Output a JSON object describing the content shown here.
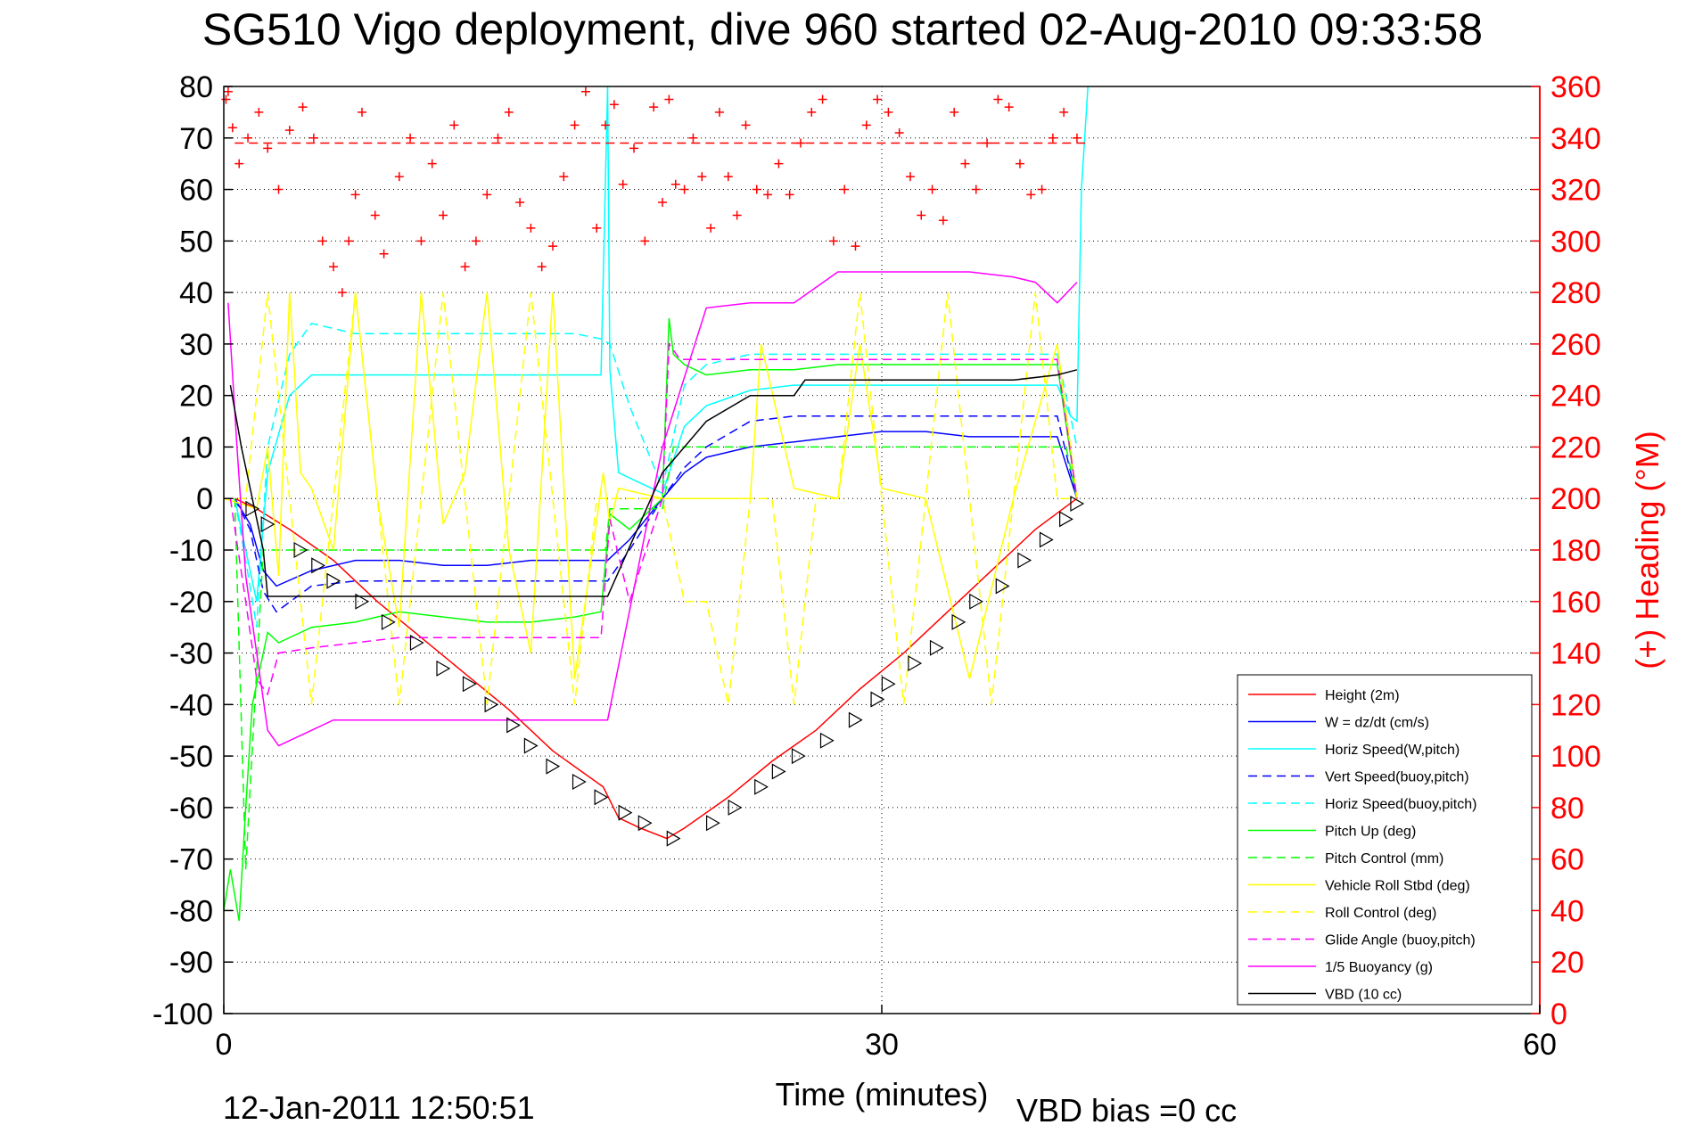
{
  "title": "SG510 Vigo deployment, dive 960 started 02-Aug-2010 09:33:58",
  "footer": {
    "date_stamp": "12-Jan-2011 12:50:51",
    "vbd_bias": "VBD bias =0 cc"
  },
  "chart_data": {
    "type": "line",
    "title": "SG510 Vigo deployment, dive 960 started 02-Aug-2010 09:33:58",
    "xlabel": "Time (minutes)",
    "ylabel": "",
    "y2label": "(+) Heading (°M)",
    "xlim": [
      0,
      60
    ],
    "ylim": [
      -100,
      80
    ],
    "y2lim": [
      0,
      360
    ],
    "xticks": [
      "0",
      "30",
      "60"
    ],
    "yticks": [
      "80",
      "70",
      "60",
      "50",
      "40",
      "30",
      "20",
      "10",
      "0",
      "-10",
      "-20",
      "-30",
      "-40",
      "-50",
      "-60",
      "-70",
      "-80",
      "-90",
      "-100"
    ],
    "y2ticks": [
      "360",
      "340",
      "320",
      "300",
      "280",
      "260",
      "240",
      "220",
      "200",
      "180",
      "160",
      "140",
      "120",
      "100",
      "80",
      "60",
      "40",
      "20",
      "0"
    ],
    "grid": "dotted",
    "legend_position": "bottom-right",
    "colors": {
      "red": "#ff0000",
      "blue": "#0000ff",
      "cyan": "#00ffff",
      "green": "#00ff00",
      "yellow": "#ffff00",
      "magenta": "#ff00ff",
      "black": "#000000"
    },
    "series": [
      {
        "name": "Height (2m)",
        "color": "#ff0000",
        "dash": "solid",
        "x": [
          0.5,
          1.5,
          3,
          5,
          7,
          9,
          11,
          13,
          15,
          17.3,
          18,
          19,
          20.2,
          21,
          23,
          25,
          27,
          29,
          31,
          33,
          35,
          37,
          38.9
        ],
        "y": [
          0,
          -2,
          -6,
          -12,
          -20,
          -27,
          -34,
          -41,
          -49,
          -56,
          -62,
          -64,
          -66,
          -64,
          -58,
          -51,
          -45,
          -37,
          -30,
          -22,
          -14,
          -6,
          0
        ]
      },
      {
        "name": "W = dz/dt (cm/s)",
        "color": "#0000ff",
        "dash": "solid",
        "x": [
          0.5,
          1.2,
          1.8,
          2.4,
          4,
          6,
          8,
          10,
          12,
          14,
          16,
          17.5,
          18.5,
          20,
          21,
          22,
          24,
          26,
          28,
          30,
          32,
          34,
          36,
          38,
          38.9
        ],
        "y": [
          0,
          -5,
          -14,
          -17,
          -14,
          -12,
          -12,
          -13,
          -13,
          -12,
          -12,
          -12,
          -8,
          0,
          5,
          8,
          10,
          11,
          12,
          13,
          13,
          12,
          12,
          12,
          0
        ]
      },
      {
        "name": "Horiz Speed(W,pitch)",
        "color": "#00ffff",
        "dash": "solid",
        "x": [
          0.5,
          1,
          1.5,
          2,
          3,
          4,
          6,
          8,
          10,
          12,
          14,
          16,
          17.2,
          17.5,
          17.6,
          18,
          19,
          20,
          21,
          22,
          24,
          26,
          28,
          30,
          32,
          34,
          36,
          38,
          38.6,
          38.9,
          39.1,
          39.4
        ],
        "y": [
          0,
          -10,
          -20,
          5,
          20,
          24,
          24,
          24,
          24,
          24,
          24,
          24,
          24,
          80,
          25,
          5,
          3,
          1,
          14,
          18,
          21,
          22,
          22,
          22,
          22,
          22,
          22,
          22,
          16,
          15,
          60,
          80
        ]
      },
      {
        "name": "Vert Speed(buoy,pitch)",
        "color": "#0000ff",
        "dash": "dashed",
        "x": [
          0.5,
          1.2,
          1.8,
          2.4,
          4,
          6,
          8,
          10,
          12,
          14,
          16,
          17.5,
          18.5,
          20,
          21,
          22,
          24,
          26,
          28,
          30,
          32,
          34,
          36,
          38,
          38.9
        ],
        "y": [
          0,
          -6,
          -18,
          -22,
          -17,
          -16,
          -16,
          -16,
          -16,
          -16,
          -16,
          -16,
          -10,
          0,
          6,
          10,
          15,
          16,
          16,
          16,
          16,
          16,
          16,
          16,
          0
        ]
      },
      {
        "name": "Horiz Speed(buoy,pitch)",
        "color": "#00ffff",
        "dash": "dashed",
        "x": [
          0.5,
          1,
          1.5,
          2,
          3,
          4,
          6,
          8,
          10,
          12,
          14,
          16,
          17.2,
          17.6,
          18.5,
          20,
          21,
          22,
          24,
          26,
          28,
          30,
          32,
          34,
          36,
          38,
          38.9
        ],
        "y": [
          0,
          -12,
          -25,
          10,
          28,
          34,
          32,
          32,
          32,
          32,
          32,
          32,
          31,
          30,
          18,
          2,
          22,
          26,
          28,
          28,
          28,
          28,
          28,
          28,
          28,
          28,
          10
        ]
      },
      {
        "name": "Pitch Up (deg)",
        "color": "#00ff00",
        "dash": "solid",
        "x": [
          0,
          0.3,
          0.7,
          1,
          1.3,
          1.7,
          2,
          2.5,
          4,
          6,
          8,
          10,
          12,
          14,
          16,
          17.2,
          17.6,
          18.5,
          20,
          20.3,
          20.5,
          21,
          22,
          24,
          26,
          28,
          30,
          32,
          34,
          36,
          38,
          38.9
        ],
        "y": [
          -80,
          -72,
          -82,
          -60,
          -40,
          -32,
          -26,
          -28,
          -25,
          -24,
          -22,
          -23,
          -24,
          -24,
          -23,
          -22,
          -3,
          -6,
          0,
          35,
          28,
          26,
          24,
          25,
          25,
          26,
          26,
          26,
          26,
          26,
          26,
          0
        ]
      },
      {
        "name": "Pitch Control (mm)",
        "color": "#00ff00",
        "dash": "dashed",
        "x": [
          0.5,
          1,
          1.8,
          2.4,
          10,
          17.4,
          17.6,
          20,
          20.5,
          21,
          23,
          30,
          38.4,
          38.9
        ],
        "y": [
          0,
          -72,
          -10,
          -10,
          -10,
          -10,
          -2,
          -2,
          10,
          10,
          10,
          10,
          10,
          0
        ]
      },
      {
        "name": "Vehicle Roll Stbd (deg)",
        "color": "#ffff00",
        "dash": "solid",
        "x": [
          0,
          1.5,
          2,
          2.5,
          3,
          3.5,
          4,
          5,
          6,
          7,
          8,
          9,
          10,
          11,
          12,
          13,
          14,
          15,
          16,
          17.3,
          17.6,
          18,
          20,
          22,
          24,
          24.5,
          26,
          28,
          29,
          30,
          32,
          34,
          36,
          38,
          38.9
        ],
        "y": [
          0,
          -2,
          10,
          -15,
          40,
          5,
          2,
          -10,
          40,
          0,
          -25,
          40,
          -5,
          5,
          40,
          -10,
          -30,
          40,
          -35,
          5,
          -5,
          2,
          0,
          0,
          0,
          30,
          2,
          0,
          30,
          2,
          0,
          -35,
          0,
          30,
          0
        ]
      },
      {
        "name": "Roll Control (deg)",
        "color": "#ffff00",
        "dash": "dashed",
        "x": [
          0,
          1,
          2,
          3,
          4,
          5,
          6,
          7,
          8,
          9,
          10,
          11,
          12,
          13,
          14,
          15,
          16,
          17,
          18,
          19,
          20,
          21,
          22,
          23,
          24,
          25,
          26,
          27,
          28,
          29,
          30,
          31,
          32,
          33,
          34,
          35,
          36,
          37,
          38,
          38.9
        ],
        "y": [
          0,
          0,
          40,
          0,
          -40,
          0,
          40,
          0,
          -40,
          0,
          40,
          0,
          -40,
          0,
          40,
          0,
          -40,
          0,
          0,
          0,
          0,
          -20,
          -20,
          -40,
          0,
          0,
          -40,
          0,
          0,
          40,
          0,
          -40,
          0,
          40,
          0,
          -40,
          0,
          40,
          0,
          0
        ]
      },
      {
        "name": "Glide Angle (buoy,pitch)",
        "color": "#ff00ff",
        "dash": "dashed",
        "x": [
          0.3,
          1,
          1.5,
          2,
          2.5,
          4,
          6,
          8,
          10,
          12,
          14,
          16,
          17.2,
          17.6,
          18.5,
          20,
          20.3,
          20.8,
          22,
          24,
          26,
          28,
          30,
          32,
          34,
          36,
          38,
          38.9
        ],
        "y": [
          0,
          -20,
          -35,
          -38,
          -30,
          -29,
          -28,
          -27,
          -27,
          -27,
          -27,
          -27,
          -27,
          -4,
          -20,
          0,
          30,
          27,
          27,
          27,
          27,
          27,
          27,
          27,
          27,
          27,
          27,
          0
        ]
      },
      {
        "name": "1/5 Buoyancy (g)",
        "color": "#ff00ff",
        "dash": "solid",
        "x": [
          0.2,
          0.6,
          1,
          1.5,
          2,
          2.5,
          3,
          5,
          10,
          15,
          17.5,
          20,
          22,
          24,
          26,
          28,
          30,
          32,
          34,
          36,
          37,
          38,
          38.9
        ],
        "y": [
          38,
          10,
          -15,
          -30,
          -45,
          -48,
          -47,
          -43,
          -43,
          -43,
          -43,
          10,
          37,
          38,
          38,
          44,
          44,
          44,
          44,
          43,
          42,
          38,
          42
        ]
      },
      {
        "name": "VBD (10 cc)",
        "color": "#000000",
        "dash": "solid",
        "x": [
          0.3,
          0.8,
          1.3,
          1.8,
          2,
          2.5,
          3,
          5,
          10,
          17.5,
          20,
          22,
          24,
          25,
          26,
          26.5,
          28,
          30,
          32,
          34,
          36,
          38,
          38.9
        ],
        "y": [
          22,
          10,
          0,
          -10,
          -19,
          -19,
          -19,
          -19,
          -19,
          -19,
          5,
          15,
          20,
          20,
          20,
          23,
          23,
          23,
          23,
          23,
          23,
          24,
          25
        ]
      }
    ],
    "depth_markers": {
      "symbol": "triangle",
      "x": [
        1.3,
        2,
        3.5,
        4.3,
        5,
        6.3,
        7.5,
        8.8,
        10,
        11.2,
        12.2,
        13.2,
        14,
        15,
        16.2,
        17.2,
        18.3,
        19.2,
        20.5,
        22.3,
        23.3,
        24.5,
        25.3,
        26.2,
        27.5,
        28.8,
        29.8,
        30.3,
        31.5,
        32.5,
        33.5,
        34.3,
        35.5,
        36.5,
        37.5,
        38.4,
        38.9
      ],
      "y": [
        -2,
        -5,
        -10,
        -13,
        -16,
        -20,
        -24,
        -28,
        -33,
        -36,
        -40,
        -44,
        -48,
        -52,
        -55,
        -58,
        -61,
        -63,
        -66,
        -63,
        -60,
        -56,
        -53,
        -50,
        -47,
        -43,
        -39,
        -36,
        -32,
        -29,
        -24,
        -20,
        -17,
        -12,
        -8,
        -4,
        -1
      ]
    },
    "heading": {
      "label": "(+) Heading (°M)",
      "marker": "+",
      "color": "#ff0000",
      "target": 338,
      "x": [
        0.1,
        0.2,
        0.4,
        0.7,
        1.1,
        1.6,
        2,
        2.5,
        3,
        3.6,
        4.1,
        4.5,
        5,
        5.4,
        5.7,
        6,
        6.3,
        6.9,
        7.3,
        8,
        8.5,
        9,
        9.5,
        10,
        10.5,
        11,
        11.5,
        12,
        12.5,
        13,
        13.5,
        14,
        14.5,
        15,
        15.5,
        16,
        16.5,
        17,
        17.4,
        17.8,
        18.2,
        18.7,
        19.2,
        19.6,
        20,
        20.3,
        20.6,
        21,
        21.4,
        21.8,
        22.2,
        22.6,
        23,
        23.4,
        23.8,
        24.3,
        24.8,
        25.3,
        25.8,
        26.3,
        26.8,
        27.3,
        27.8,
        28.3,
        28.8,
        29.3,
        29.8,
        30.3,
        30.8,
        31.3,
        31.8,
        32.3,
        32.8,
        33.3,
        33.8,
        34.3,
        34.8,
        35.3,
        35.8,
        36.3,
        36.8,
        37.3,
        37.8,
        38.3,
        38.9
      ],
      "y": [
        355,
        358,
        344,
        330,
        340,
        350,
        336,
        320,
        343,
        352,
        340,
        300,
        290,
        280,
        300,
        318,
        350,
        310,
        295,
        325,
        340,
        300,
        330,
        310,
        345,
        290,
        300,
        318,
        340,
        350,
        315,
        305,
        290,
        298,
        325,
        345,
        358,
        305,
        345,
        353,
        322,
        336,
        300,
        352,
        315,
        355,
        322,
        320,
        340,
        325,
        305,
        350,
        325,
        310,
        345,
        320,
        318,
        330,
        318,
        338,
        350,
        355,
        300,
        320,
        298,
        345,
        355,
        350,
        342,
        325,
        310,
        320,
        308,
        350,
        330,
        320,
        338,
        355,
        352,
        330,
        318,
        320,
        340,
        350,
        340
      ]
    }
  }
}
